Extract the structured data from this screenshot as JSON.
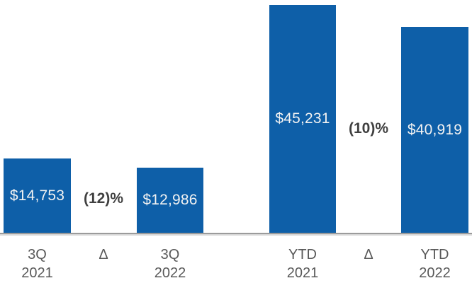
{
  "chart_data": {
    "type": "bar",
    "title": "",
    "orientation": "vertical",
    "grid": false,
    "legend": false,
    "baseline_value": 0,
    "max_value": 45231,
    "items": [
      {
        "kind": "bar",
        "category_lines": [
          "3Q",
          "2021"
        ],
        "value": 14753,
        "value_label": "$14,753"
      },
      {
        "kind": "delta",
        "category_lines": [
          "Δ"
        ],
        "value_label": "(12)%"
      },
      {
        "kind": "bar",
        "category_lines": [
          "3Q",
          "2022"
        ],
        "value": 12986,
        "value_label": "$12,986"
      },
      {
        "kind": "bar",
        "category_lines": [
          "YTD",
          "2021"
        ],
        "value": 45231,
        "value_label": "$45,231"
      },
      {
        "kind": "delta",
        "category_lines": [
          "Δ"
        ],
        "value_label": "(10)%"
      },
      {
        "kind": "bar",
        "category_lines": [
          "YTD",
          "2022"
        ],
        "value": 40919,
        "value_label": "$40,919"
      }
    ],
    "colors": {
      "bar_fill": "#0E5FA8",
      "bar_value_text": "#F2F2F2",
      "delta_text": "#404040",
      "axis_label_text": "#595959",
      "axis_line": "#9B9B9B",
      "axis_line_shadow": "#D9D9D9",
      "background": "#FFFFFF"
    }
  }
}
